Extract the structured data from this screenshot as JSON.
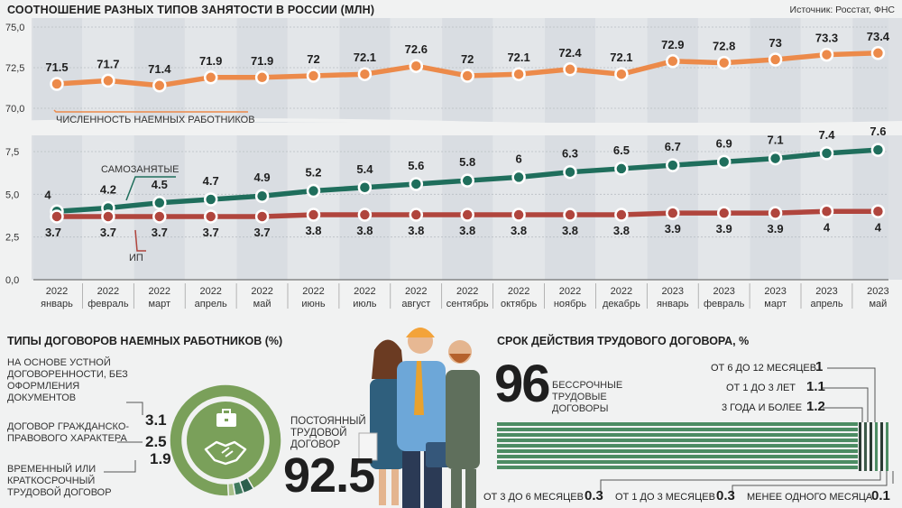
{
  "header": {
    "title": "СООТНОШЕНИЕ РАЗНЫХ ТИПОВ ЗАНЯТОСТИ В РОССИИ (МЛН)",
    "source": "Источник: Росстат, ФНС"
  },
  "chart_data": [
    {
      "type": "line",
      "title": "СООТНОШЕНИЕ РАЗНЫХ ТИПОВ ЗАНЯТОСТИ В РОССИИ (МЛН)",
      "x_years": [
        "2022",
        "2022",
        "2022",
        "2022",
        "2022",
        "2022",
        "2022",
        "2022",
        "2022",
        "2022",
        "2022",
        "2022",
        "2023",
        "2023",
        "2023",
        "2023",
        "2023"
      ],
      "x_months": [
        "январь",
        "февраль",
        "март",
        "апрель",
        "май",
        "июнь",
        "июль",
        "август",
        "сентябрь",
        "октябрь",
        "ноябрь",
        "декабрь",
        "январь",
        "февраль",
        "март",
        "апрель",
        "май"
      ],
      "y_ticks": [
        "75,0",
        "72,5",
        "70,0",
        "7,5",
        "5,0",
        "2,5",
        "0,0"
      ],
      "axis_break": true,
      "series": [
        {
          "name": "ЧИСЛЕННОСТЬ НАЕМНЫХ РАБОТНИКОВ",
          "color": "#ec8a4a",
          "values": [
            71.5,
            71.7,
            71.4,
            71.9,
            71.9,
            72,
            72.1,
            72.6,
            72,
            72.1,
            72.4,
            72.1,
            72.9,
            72.8,
            73,
            73.3,
            73.4
          ],
          "labels": [
            "71.5",
            "71.7",
            "71.4",
            "71.9",
            "71.9",
            "72",
            "72.1",
            "72.6",
            "72",
            "72.1",
            "72.4",
            "72.1",
            "72.9",
            "72.8",
            "73",
            "73.3",
            "73.4"
          ]
        },
        {
          "name": "САМОЗАНЯТЫЕ",
          "color": "#1f6e5c",
          "values": [
            4,
            4.2,
            4.5,
            4.7,
            4.9,
            5.2,
            5.4,
            5.6,
            5.8,
            6,
            6.3,
            6.5,
            6.7,
            6.9,
            7.1,
            7.4,
            7.6
          ],
          "labels": [
            "4",
            "4.2",
            "4.5",
            "4.7",
            "4.9",
            "5.2",
            "5.4",
            "5.6",
            "5.8",
            "6",
            "6.3",
            "6.5",
            "6.7",
            "6.9",
            "7.1",
            "7.4",
            "7.6"
          ]
        },
        {
          "name": "ИП",
          "color": "#b0453d",
          "values": [
            3.7,
            3.7,
            3.7,
            3.7,
            3.7,
            3.8,
            3.8,
            3.8,
            3.8,
            3.8,
            3.8,
            3.8,
            3.9,
            3.9,
            3.9,
            4,
            4
          ],
          "labels": [
            "3.7",
            "3.7",
            "3.7",
            "3.7",
            "3.7",
            "3.8",
            "3.8",
            "3.8",
            "3.8",
            "3.8",
            "3.8",
            "3.8",
            "3.9",
            "3.9",
            "3.9",
            "4",
            "4"
          ]
        }
      ]
    },
    {
      "type": "pie",
      "title": "ТИПЫ ДОГОВОРОВ НАЕМНЫХ РАБОТНИКОВ (%)",
      "slices": [
        {
          "label": "ПОСТОЯННЫЙ ТРУДОВОЙ ДОГОВОР",
          "value": 92.5,
          "value_label": "92.5",
          "color": "#7aa05a"
        },
        {
          "label": "НА ОСНОВЕ УСТНОЙ ДОГОВОРЕННОСТИ, БЕЗ ОФОРМЛЕНИЯ ДОКУМЕНТОВ",
          "value": 3.1,
          "value_label": "3.1",
          "color": "#2c5f4d"
        },
        {
          "label": "ДОГОВОР ГРАЖДАНСКО-ПРАВОВОГО ХАРАКТЕРА",
          "value": 2.5,
          "value_label": "2.5",
          "color": "#3f7a5d"
        },
        {
          "label": "ВРЕМЕННЫЙ ИЛИ КРАТКОСРОЧНЫЙ ТРУДОВОЙ ДОГОВОР",
          "value": 1.9,
          "value_label": "1.9",
          "color": "#a8c08a"
        }
      ]
    },
    {
      "type": "bar",
      "title": "СРОК ДЕЙСТВИЯ ТРУДОВОГО ДОГОВОРА, %",
      "categories": [
        "БЕССРОЧНЫЕ ТРУДОВЫЕ ДОГОВОРЫ",
        "ОТ 6 ДО 12 МЕСЯЦЕВ",
        "ОТ 1 ДО 3 ЛЕТ",
        "3 ГОДА И БОЛЕЕ",
        "ОТ 3 ДО 6 МЕСЯЦЕВ",
        "ОТ 1 ДО 3 МЕСЯЦЕВ",
        "МЕНЕЕ ОДНОГО МЕСЯЦА"
      ],
      "values": [
        96,
        1,
        1.1,
        1.2,
        0.3,
        0.3,
        0.1
      ],
      "value_labels": [
        "96",
        "1",
        "1.1",
        "1.2",
        "0.3",
        "0.3",
        "0.1"
      ]
    }
  ],
  "contracts": {
    "oral_label": "НА ОСНОВЕ УСТНОЙ ДОГОВОРЕННОСТИ, БЕЗ ОФОРМЛЕНИЯ ДОКУМЕНТОВ",
    "oral_value": "3.1",
    "civil_label": "ДОГОВОР ГРАЖДАНСКО-ПРАВОВОГО ХАРАКТЕРА",
    "civil_value": "2.5",
    "temp_label": "ВРЕМЕННЫЙ ИЛИ КРАТКОСРОЧНЫЙ ТРУДОВОЙ ДОГОВОР",
    "temp_value": "1.9",
    "perm_label": "ПОСТОЯННЫЙ ТРУДОВОЙ ДОГОВОР",
    "perm_value": "92.5"
  },
  "term": {
    "open_value": "96",
    "open_label": "БЕССРОЧНЫЕ ТРУДОВЫЕ ДОГОВОРЫ",
    "m6_12_label": "ОТ 6 ДО 12 МЕСЯЦЕВ",
    "m6_12_value": "1",
    "y1_3_label": "ОТ 1 ДО 3 ЛЕТ",
    "y1_3_value": "1.1",
    "y3_label": "3 ГОДА И БОЛЕЕ",
    "y3_value": "1.2",
    "m3_6_label": "ОТ 3 ДО 6 МЕСЯЦЕВ",
    "m3_6_value": "0.3",
    "m1_3_label": "ОТ 1 ДО 3 МЕСЯЦЕВ",
    "m1_3_value": "0.3",
    "lt1_label": "МЕНЕЕ ОДНОГО МЕСЯЦА",
    "lt1_value": "0.1"
  }
}
